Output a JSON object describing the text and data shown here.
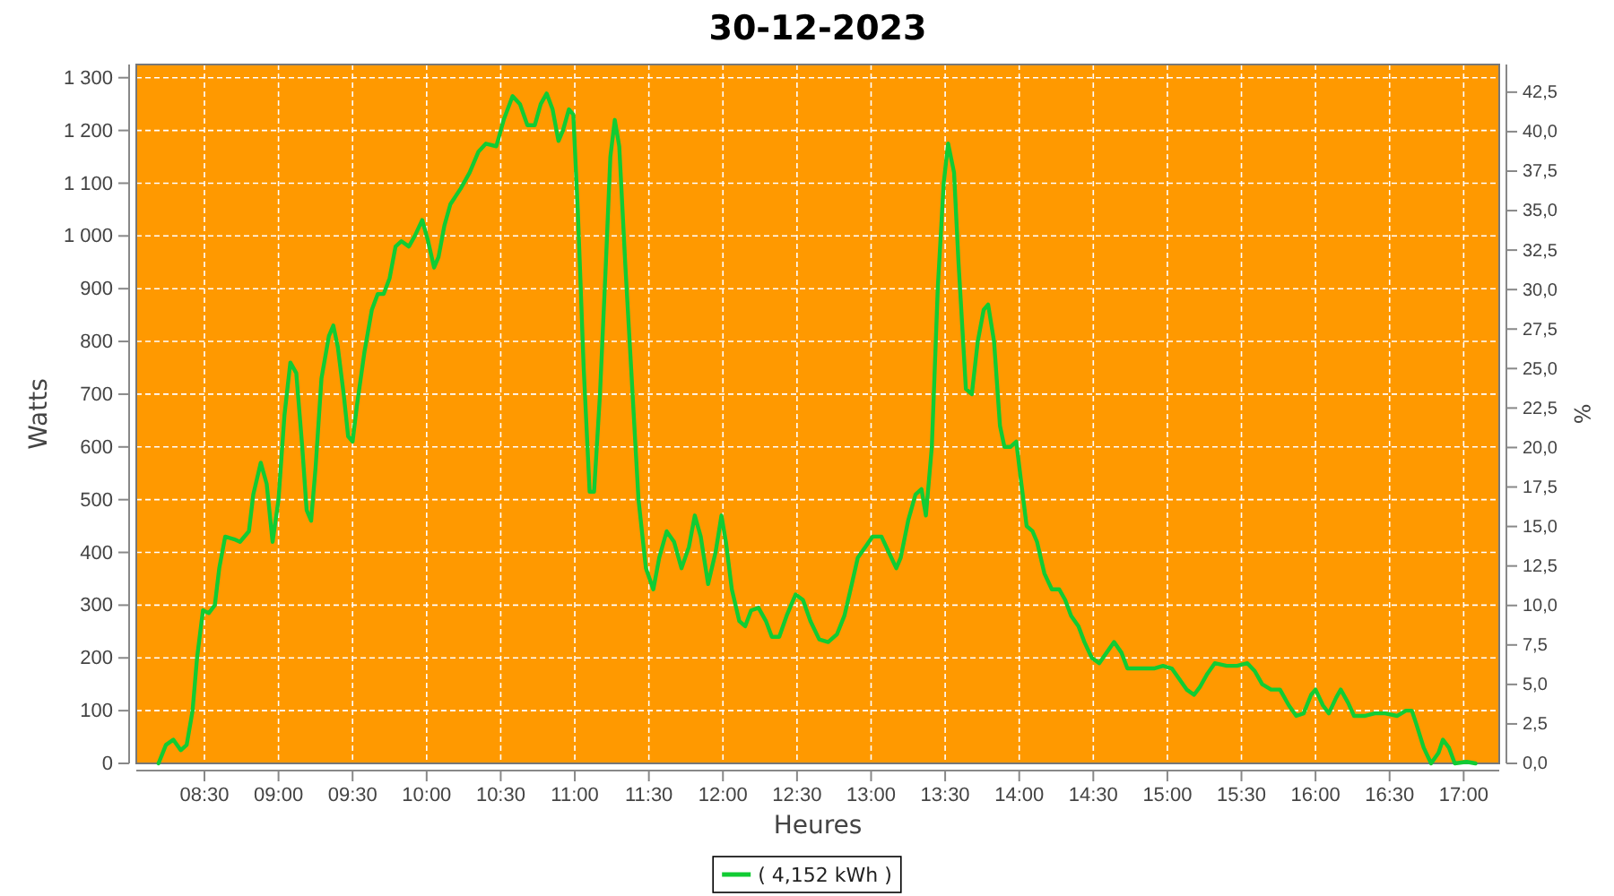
{
  "chart_data": {
    "type": "line",
    "title": "30-12-2023",
    "xlabel": "Heures",
    "ylabel": "Watts",
    "y2label": "%",
    "xlim": [
      8.04,
      17.24
    ],
    "xticks": [
      {
        "value": 8.5,
        "label": "08:30"
      },
      {
        "value": 9,
        "label": "09:00"
      },
      {
        "value": 9.5,
        "label": "09:30"
      },
      {
        "value": 10,
        "label": "10:00"
      },
      {
        "value": 10.5,
        "label": "10:30"
      },
      {
        "value": 11,
        "label": "11:00"
      },
      {
        "value": 11.5,
        "label": "11:30"
      },
      {
        "value": 12,
        "label": "12:00"
      },
      {
        "value": 12.5,
        "label": "12:30"
      },
      {
        "value": 13,
        "label": "13:00"
      },
      {
        "value": 13.5,
        "label": "13:30"
      },
      {
        "value": 14,
        "label": "14:00"
      },
      {
        "value": 14.5,
        "label": "14:30"
      },
      {
        "value": 15,
        "label": "15:00"
      },
      {
        "value": 15.5,
        "label": "15:30"
      },
      {
        "value": 16,
        "label": "16:00"
      },
      {
        "value": 16.5,
        "label": "16:30"
      },
      {
        "value": 17,
        "label": "17:00"
      }
    ],
    "ylim": [
      0,
      1325
    ],
    "yticks": [
      0,
      100,
      200,
      300,
      400,
      500,
      600,
      700,
      800,
      900,
      {
        "value": 1000,
        "label": "1 000"
      },
      {
        "value": 1100,
        "label": "1 100"
      },
      {
        "value": 1200,
        "label": "1 200"
      },
      {
        "value": 1300,
        "label": "1 300"
      }
    ],
    "y2lim": [
      0,
      44.25
    ],
    "y2ticks": [
      {
        "value": 0,
        "label": "0,0"
      },
      {
        "value": 2.5,
        "label": "2,5"
      },
      {
        "value": 5,
        "label": "5,0"
      },
      {
        "value": 7.5,
        "label": "7,5"
      },
      {
        "value": 10,
        "label": "10,0"
      },
      {
        "value": 12.5,
        "label": "12,5"
      },
      {
        "value": 15,
        "label": "15,0"
      },
      {
        "value": 17.5,
        "label": "17,5"
      },
      {
        "value": 20,
        "label": "20,0"
      },
      {
        "value": 22.5,
        "label": "22,5"
      },
      {
        "value": 25,
        "label": "25,0"
      },
      {
        "value": 27.5,
        "label": "27,5"
      },
      {
        "value": 30,
        "label": "30,0"
      },
      {
        "value": 32.5,
        "label": "32,5"
      },
      {
        "value": 35,
        "label": "35,0"
      },
      {
        "value": 37.5,
        "label": "37,5"
      },
      {
        "value": 40,
        "label": "40,0"
      },
      {
        "value": 42.5,
        "label": "42,5"
      }
    ],
    "grid": true,
    "legend": "bottom",
    "marker": "none",
    "line_style": "solid",
    "x": [
      8.19,
      8.24,
      8.29,
      8.34,
      8.38,
      8.42,
      8.45,
      8.49,
      8.53,
      8.57,
      8.6,
      8.64,
      8.7,
      8.74,
      8.8,
      8.83,
      8.88,
      8.92,
      8.96,
      9.0,
      9.04,
      9.08,
      9.12,
      9.16,
      9.19,
      9.22,
      9.25,
      9.29,
      9.34,
      9.37,
      9.4,
      9.44,
      9.47,
      9.5,
      9.53,
      9.58,
      9.63,
      9.67,
      9.71,
      9.75,
      9.79,
      9.83,
      9.88,
      9.92,
      9.97,
      10.01,
      10.05,
      10.08,
      10.12,
      10.16,
      10.23,
      10.29,
      10.35,
      10.4,
      10.47,
      10.52,
      10.58,
      10.63,
      10.68,
      10.73,
      10.77,
      10.81,
      10.85,
      10.89,
      10.92,
      10.96,
      10.99,
      11.02,
      11.06,
      11.1,
      11.13,
      11.17,
      11.21,
      11.24,
      11.27,
      11.3,
      11.34,
      11.38,
      11.43,
      11.48,
      11.53,
      11.57,
      11.62,
      11.67,
      11.72,
      11.77,
      11.81,
      11.85,
      11.9,
      11.95,
      11.99,
      12.02,
      12.06,
      12.11,
      12.15,
      12.19,
      12.24,
      12.29,
      12.33,
      12.38,
      12.43,
      12.49,
      12.54,
      12.59,
      12.65,
      12.71,
      12.77,
      12.82,
      12.87,
      12.91,
      12.96,
      13.01,
      13.07,
      13.12,
      13.17,
      13.2,
      13.25,
      13.3,
      13.34,
      13.37,
      13.41,
      13.45,
      13.49,
      13.52,
      13.56,
      13.59,
      13.64,
      13.68,
      13.72,
      13.76,
      13.79,
      13.83,
      13.87,
      13.9,
      13.94,
      13.98,
      14.01,
      14.05,
      14.09,
      14.12,
      14.17,
      14.22,
      14.27,
      14.31,
      14.35,
      14.4,
      14.44,
      14.49,
      14.54,
      14.59,
      14.64,
      14.69,
      14.73,
      14.79,
      14.85,
      14.91,
      14.97,
      15.03,
      15.08,
      15.13,
      15.18,
      15.22,
      15.27,
      15.32,
      15.4,
      15.47,
      15.54,
      15.59,
      15.64,
      15.7,
      15.76,
      15.82,
      15.87,
      15.92,
      15.97,
      16.0,
      16.05,
      16.09,
      16.14,
      16.17,
      16.22,
      16.26,
      16.33,
      16.4,
      16.47,
      16.55,
      16.61,
      16.65,
      16.68,
      16.73,
      16.78,
      16.83,
      16.86,
      16.9,
      16.94,
      17.02,
      17.08
    ],
    "series": [
      {
        "name": "( 4,152 kWh )",
        "color": "#11cc33",
        "values": [
          0,
          35,
          45,
          25,
          35,
          100,
          200,
          290,
          285,
          300,
          370,
          430,
          425,
          420,
          440,
          510,
          570,
          530,
          420,
          500,
          660,
          760,
          740,
          600,
          480,
          460,
          560,
          730,
          810,
          830,
          790,
          700,
          620,
          610,
          680,
          780,
          860,
          890,
          890,
          920,
          980,
          990,
          980,
          1000,
          1030,
          990,
          940,
          960,
          1020,
          1060,
          1090,
          1120,
          1160,
          1175,
          1170,
          1220,
          1265,
          1250,
          1210,
          1210,
          1250,
          1270,
          1240,
          1180,
          1200,
          1240,
          1230,
          1050,
          750,
          515,
          515,
          700,
          950,
          1150,
          1220,
          1170,
          950,
          750,
          500,
          370,
          330,
          390,
          440,
          420,
          370,
          410,
          470,
          430,
          340,
          400,
          470,
          420,
          330,
          270,
          260,
          290,
          295,
          270,
          240,
          240,
          280,
          320,
          310,
          270,
          235,
          230,
          245,
          280,
          340,
          390,
          410,
          430,
          430,
          400,
          370,
          390,
          460,
          510,
          520,
          470,
          600,
          900,
          1100,
          1175,
          1120,
          950,
          710,
          700,
          800,
          860,
          870,
          800,
          640,
          600,
          600,
          610,
          540,
          450,
          440,
          420,
          360,
          330,
          330,
          310,
          280,
          260,
          230,
          200,
          190,
          210,
          230,
          210,
          180,
          180,
          180,
          180,
          185,
          180,
          160,
          140,
          130,
          145,
          170,
          190,
          185,
          185,
          190,
          175,
          150,
          140,
          140,
          110,
          90,
          95,
          130,
          140,
          110,
          95,
          125,
          140,
          115,
          90,
          90,
          95,
          95,
          90,
          100,
          100,
          75,
          30,
          0,
          20,
          45,
          30,
          0,
          3,
          0
        ]
      }
    ]
  }
}
